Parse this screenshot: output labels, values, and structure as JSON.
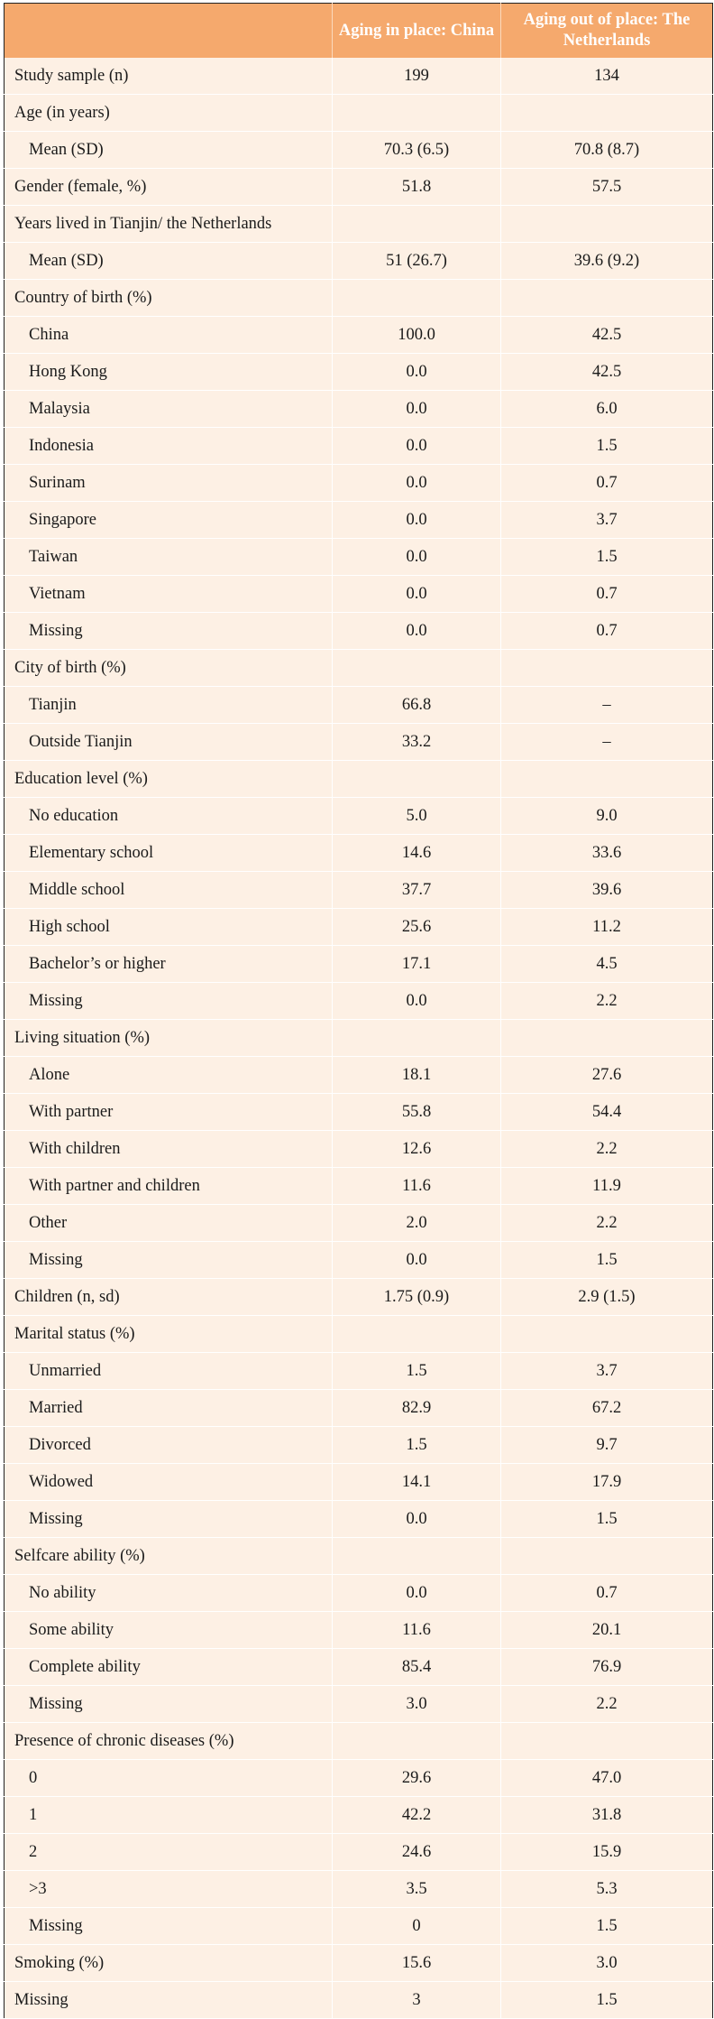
{
  "header": {
    "col0": "",
    "col1": "Aging in place: China",
    "col2": "Aging out of place: The Netherlands"
  },
  "rows": [
    {
      "label": "Study sample (n)",
      "china": "199",
      "nl": "134"
    },
    {
      "label": "Age (in years)",
      "china": "",
      "nl": ""
    },
    {
      "label": "Mean (SD)",
      "china": "70.3 (6.5)",
      "nl": "70.8 (8.7)"
    },
    {
      "label": "Gender (female, %)",
      "china": "51.8",
      "nl": "57.5"
    },
    {
      "label": "Years lived in Tianjin/ the Netherlands",
      "china": "",
      "nl": ""
    },
    {
      "label": "Mean (SD)",
      "china": "51 (26.7)",
      "nl": "39.6 (9.2)"
    },
    {
      "label": "Country of birth (%)",
      "china": "",
      "nl": ""
    },
    {
      "label": "China",
      "china": "100.0",
      "nl": "42.5"
    },
    {
      "label": "Hong Kong",
      "china": "0.0",
      "nl": "42.5"
    },
    {
      "label": "Malaysia",
      "china": "0.0",
      "nl": "6.0"
    },
    {
      "label": "Indonesia",
      "china": "0.0",
      "nl": "1.5"
    },
    {
      "label": "Surinam",
      "china": "0.0",
      "nl": "0.7"
    },
    {
      "label": "Singapore",
      "china": "0.0",
      "nl": "3.7"
    },
    {
      "label": "Taiwan",
      "china": "0.0",
      "nl": "1.5"
    },
    {
      "label": "Vietnam",
      "china": "0.0",
      "nl": "0.7"
    },
    {
      "label": "Missing",
      "china": "0.0",
      "nl": "0.7"
    },
    {
      "label": "City of birth (%)",
      "china": "",
      "nl": ""
    },
    {
      "label": "Tianjin",
      "china": "66.8",
      "nl": "–"
    },
    {
      "label": "Outside Tianjin",
      "china": "33.2",
      "nl": "–"
    },
    {
      "label": "Education level (%)",
      "china": "",
      "nl": ""
    },
    {
      "label": "No education",
      "china": "5.0",
      "nl": "9.0"
    },
    {
      "label": "Elementary school",
      "china": "14.6",
      "nl": "33.6"
    },
    {
      "label": "Middle school",
      "china": "37.7",
      "nl": "39.6"
    },
    {
      "label": "High school",
      "china": "25.6",
      "nl": "11.2"
    },
    {
      "label": "Bachelor’s or higher",
      "china": "17.1",
      "nl": "4.5"
    },
    {
      "label": "Missing",
      "china": "0.0",
      "nl": "2.2"
    },
    {
      "label": "Living situation (%)",
      "china": "",
      "nl": ""
    },
    {
      "label": "Alone",
      "china": "18.1",
      "nl": "27.6"
    },
    {
      "label": "With partner",
      "china": "55.8",
      "nl": "54.4"
    },
    {
      "label": "With children",
      "china": "12.6",
      "nl": "2.2"
    },
    {
      "label": "With partner and children",
      "china": "11.6",
      "nl": "11.9"
    },
    {
      "label": "Other",
      "china": "2.0",
      "nl": "2.2"
    },
    {
      "label": "Missing",
      "china": "0.0",
      "nl": "1.5"
    },
    {
      "label": "Children (n, sd)",
      "china": "1.75 (0.9)",
      "nl": "2.9 (1.5)"
    },
    {
      "label": "Marital status (%)",
      "china": "",
      "nl": ""
    },
    {
      "label": "Unmarried",
      "china": "1.5",
      "nl": "3.7"
    },
    {
      "label": "Married",
      "china": "82.9",
      "nl": "67.2"
    },
    {
      "label": "Divorced",
      "china": "1.5",
      "nl": "9.7"
    },
    {
      "label": "Widowed",
      "china": "14.1",
      "nl": "17.9"
    },
    {
      "label": "Missing",
      "china": "0.0",
      "nl": "1.5"
    },
    {
      "label": "Selfcare ability (%)",
      "china": "",
      "nl": ""
    },
    {
      "label": "No ability",
      "china": "0.0",
      "nl": "0.7"
    },
    {
      "label": "Some ability",
      "china": "11.6",
      "nl": "20.1"
    },
    {
      "label": "Complete ability",
      "china": "85.4",
      "nl": "76.9"
    },
    {
      "label": "Missing",
      "china": "3.0",
      "nl": "2.2"
    },
    {
      "label": "Presence of chronic diseases (%)",
      "china": "",
      "nl": ""
    },
    {
      "label": "0",
      "china": "29.6",
      "nl": "47.0"
    },
    {
      "label": "1",
      "china": "42.2",
      "nl": "31.8"
    },
    {
      "label": "2",
      "china": "24.6",
      "nl": "15.9"
    },
    {
      "label": ">3",
      "china": "3.5",
      "nl": "5.3"
    },
    {
      "label": "Missing",
      "china": "0",
      "nl": "1.5"
    },
    {
      "label": "Smoking (%)",
      "china": "15.6",
      "nl": "3.0"
    },
    {
      "label": "Missing",
      "china": "3",
      "nl": "1.5"
    }
  ]
}
